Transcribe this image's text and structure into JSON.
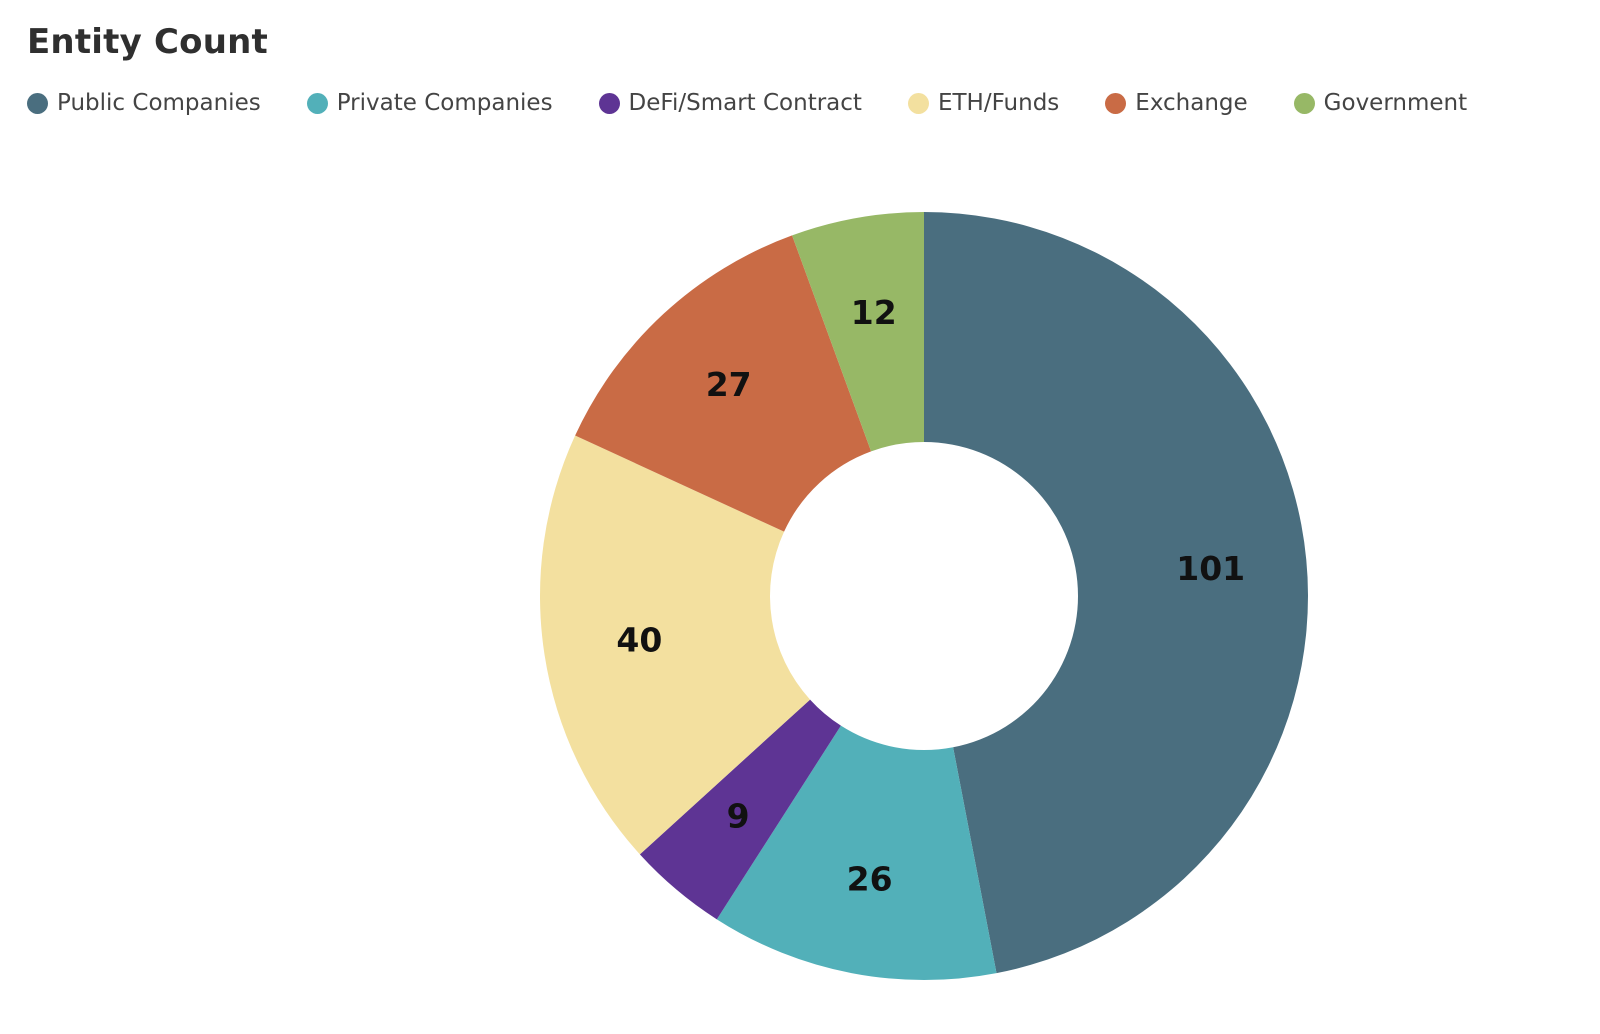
{
  "chart_data": {
    "type": "pie",
    "title": "Entity Count",
    "legend_position": "top-left",
    "donut": true,
    "slices": [
      {
        "label": "Public Companies",
        "value": 101,
        "color": "#4A6E7F"
      },
      {
        "label": "Private Companies",
        "value": 26,
        "color": "#52B0B9"
      },
      {
        "label": "DeFi/Smart Contract",
        "value": 9,
        "color": "#5E3494"
      },
      {
        "label": "ETH/Funds",
        "value": 40,
        "color": "#F3E09F"
      },
      {
        "label": "Exchange",
        "value": 27,
        "color": "#C96B45"
      },
      {
        "label": "Government",
        "value": 12,
        "color": "#97B866"
      }
    ]
  }
}
